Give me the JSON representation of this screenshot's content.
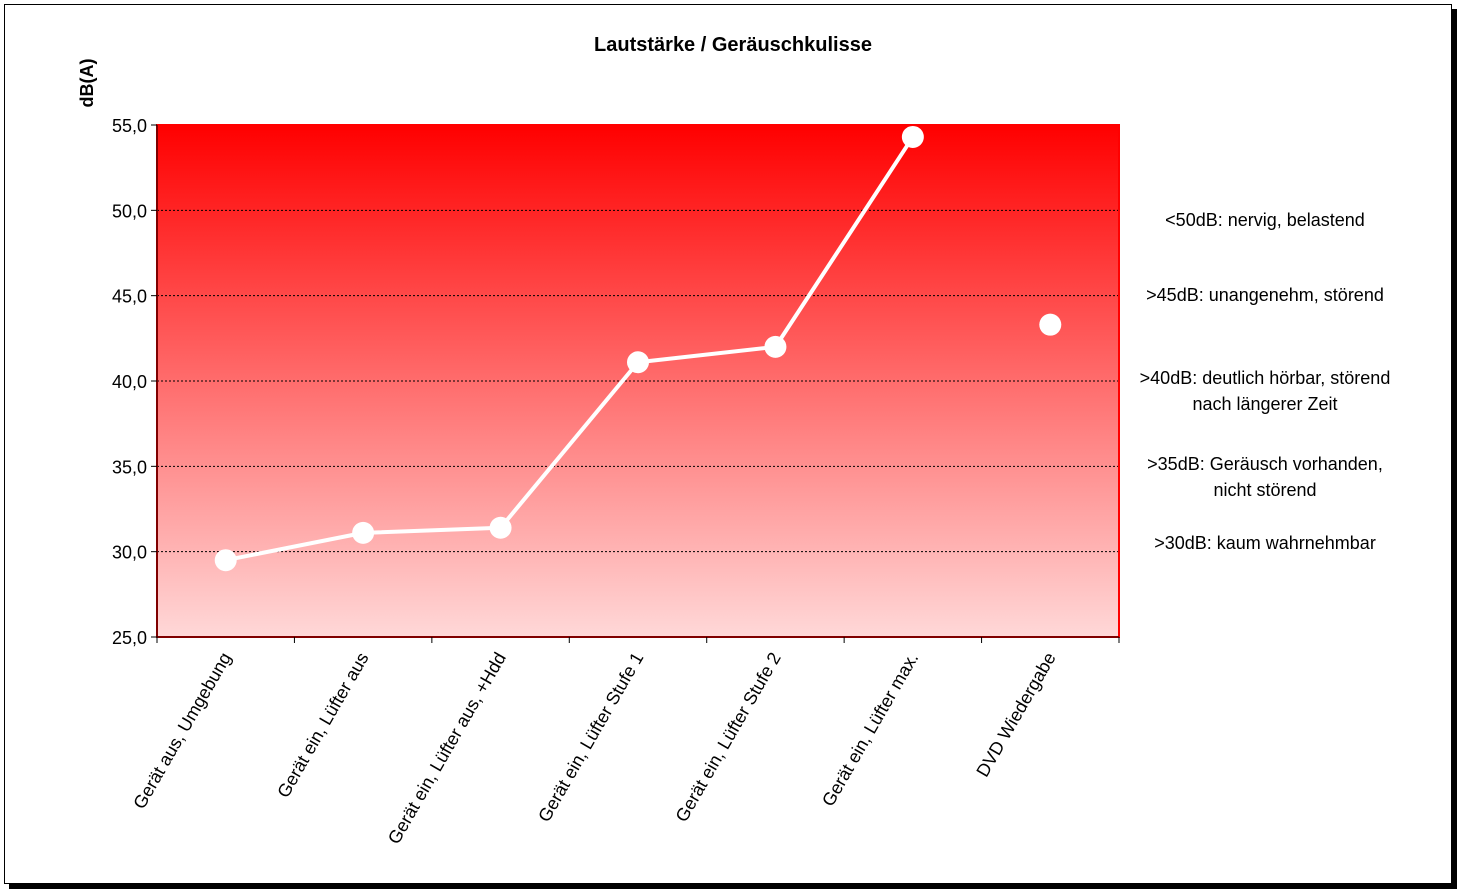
{
  "chart_data": {
    "type": "line",
    "title": "Lautstärke / Geräuschkulisse",
    "ylabel": "dB(A)",
    "xlabel": "",
    "ylim": [
      25,
      55
    ],
    "y_ticks": [
      "25,0",
      "30,0",
      "35,0",
      "40,0",
      "45,0",
      "50,0",
      "55,0"
    ],
    "y_tick_values": [
      25,
      30,
      35,
      40,
      45,
      50,
      55
    ],
    "grid": true,
    "categories": [
      "Gerät aus, Umgebung",
      "Gerät ein, Lüfter aus",
      "Gerät ein, Lüfter aus, +Hdd",
      "Gerät ein, Lüfter Stufe 1",
      "Gerät ein, Lüfter Stufe 2",
      "Gerät ein, Lüfter max.",
      "DVD Wiedergabe"
    ],
    "series": [
      {
        "values": [
          29.5,
          31.1,
          31.4,
          41.1,
          42.0,
          54.3,
          43.3
        ],
        "connected": [
          true,
          true,
          true,
          true,
          true,
          true,
          false
        ]
      }
    ],
    "colors": {
      "plot_top": "#ff0000",
      "plot_bottom": "#ffd8d8",
      "plot_border": "#ff0000",
      "line": "#ffffff",
      "grid": "#000000"
    },
    "annotations": [
      {
        "lines": [
          "<50dB: nervig, belastend"
        ]
      },
      {
        "lines": [
          ">45dB: unangenehm, störend"
        ]
      },
      {
        "lines": [
          ">40dB: deutlich hörbar, störend",
          "nach längerer Zeit"
        ]
      },
      {
        "lines": [
          ">35dB: Geräusch vorhanden,",
          "nicht störend"
        ]
      },
      {
        "lines": [
          ">30dB: kaum wahrnehmbar"
        ]
      }
    ]
  }
}
